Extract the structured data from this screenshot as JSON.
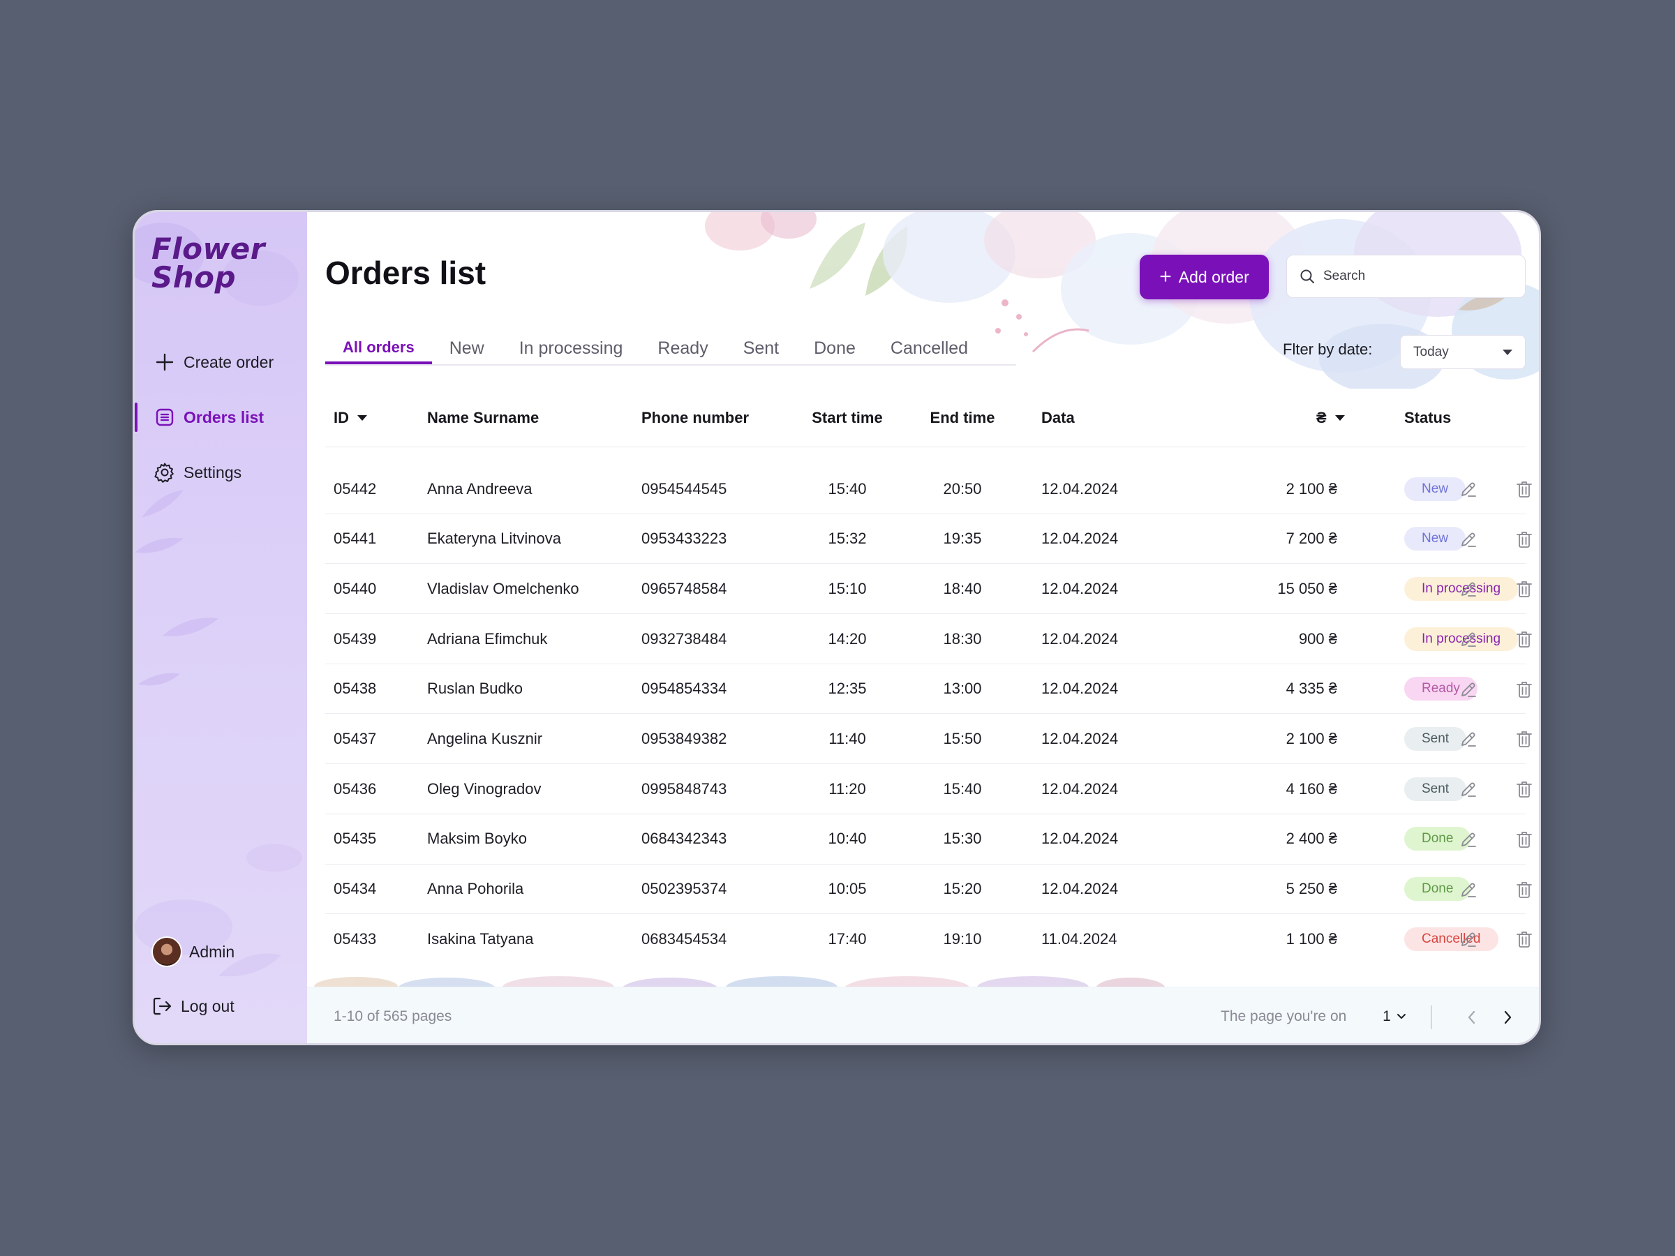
{
  "app": {
    "logo_line1": "Flower",
    "logo_line2": "Shop",
    "accent_color": "#7a11b8"
  },
  "sidebar": {
    "items": [
      {
        "label": "Create order",
        "icon": "plus-icon",
        "active": false
      },
      {
        "label": "Orders list",
        "icon": "list-icon",
        "active": true
      },
      {
        "label": "Settings",
        "icon": "gear-icon",
        "active": false
      }
    ],
    "user_name": "Admin",
    "logout_label": "Log out"
  },
  "header": {
    "title": "Orders list",
    "add_button_label": "Add order",
    "search_placeholder": "Search"
  },
  "tabs": [
    "All orders",
    "New",
    "In processing",
    "Ready",
    "Sent",
    "Done",
    "Cancelled"
  ],
  "active_tab": "All orders",
  "filter": {
    "label": "Flter by date:",
    "value": "Today"
  },
  "table": {
    "columns": [
      "ID",
      "Name Surname",
      "Phone number",
      "Start time",
      "End time",
      "Data",
      "₴",
      "Status"
    ],
    "rows": [
      {
        "id": "05442",
        "name": "Anna Andreeva",
        "phone": "0954544545",
        "start": "15:40",
        "end": "20:50",
        "date": "12.04.2024",
        "price": "2 100 ₴",
        "status": "New"
      },
      {
        "id": "05441",
        "name": "Ekateryna Litvinova",
        "phone": "0953433223",
        "start": "15:32",
        "end": "19:35",
        "date": "12.04.2024",
        "price": "7 200 ₴",
        "status": "New"
      },
      {
        "id": "05440",
        "name": "Vladislav Omelchenko",
        "phone": "0965748584",
        "start": "15:10",
        "end": "18:40",
        "date": "12.04.2024",
        "price": "15 050 ₴",
        "status": "In processing"
      },
      {
        "id": "05439",
        "name": "Adriana Efimchuk",
        "phone": "0932738484",
        "start": "14:20",
        "end": "18:30",
        "date": "12.04.2024",
        "price": "900 ₴",
        "status": "In processing"
      },
      {
        "id": "05438",
        "name": "Ruslan Budko",
        "phone": "0954854334",
        "start": "12:35",
        "end": "13:00",
        "date": "12.04.2024",
        "price": "4 335 ₴",
        "status": "Ready"
      },
      {
        "id": "05437",
        "name": "Angelina Kusznir",
        "phone": "0953849382",
        "start": "11:40",
        "end": "15:50",
        "date": "12.04.2024",
        "price": "2 100 ₴",
        "status": "Sent"
      },
      {
        "id": "05436",
        "name": "Oleg Vinogradov",
        "phone": "0995848743",
        "start": "11:20",
        "end": "15:40",
        "date": "12.04.2024",
        "price": "4 160 ₴",
        "status": "Sent"
      },
      {
        "id": "05435",
        "name": "Maksim Boyko",
        "phone": "0684342343",
        "start": "10:40",
        "end": "15:30",
        "date": "12.04.2024",
        "price": "2 400 ₴",
        "status": "Done"
      },
      {
        "id": "05434",
        "name": "Anna Pohorila",
        "phone": "0502395374",
        "start": "10:05",
        "end": "15:20",
        "date": "12.04.2024",
        "price": "5 250 ₴",
        "status": "Done"
      },
      {
        "id": "05433",
        "name": "Isakina Tatyana",
        "phone": "0683454534",
        "start": "17:40",
        "end": "19:10",
        "date": "11.04.2024",
        "price": "1 100 ₴",
        "status": "Cancelled"
      }
    ]
  },
  "status_colors": {
    "New": {
      "bg": "#e8e9fb",
      "fg": "#6f74d8"
    },
    "In processing": {
      "bg": "#fdf0d9",
      "fg": "#8a22b0"
    },
    "Ready": {
      "bg": "#f9d6f2",
      "fg": "#b35aa5"
    },
    "Sent": {
      "bg": "#e9eef0",
      "fg": "#4a5a60"
    },
    "Done": {
      "bg": "#dff5cf",
      "fg": "#5f9a48"
    },
    "Cancelled": {
      "bg": "#fde4e4",
      "fg": "#d8443e"
    }
  },
  "footer": {
    "range_text": "1-10 of 565 pages",
    "page_label": "The page you're on",
    "current_page": "1"
  }
}
